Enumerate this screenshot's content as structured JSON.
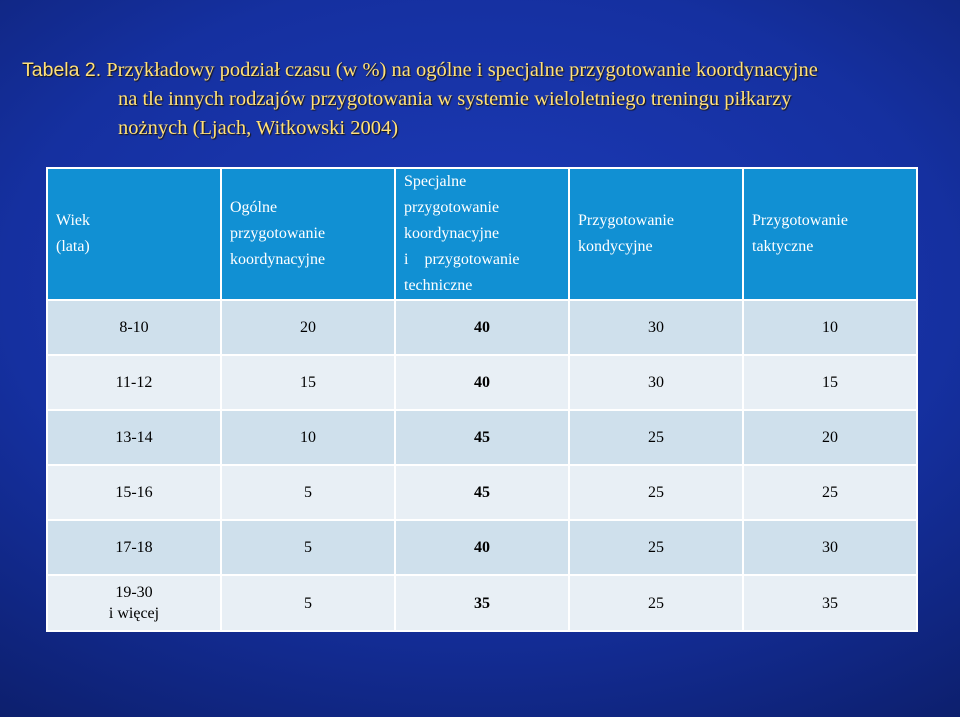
{
  "title": {
    "line1_label": "Tabela 2.",
    "line1_rest": " Przykładowy podział czasu (w %) na ogólne i specjalne przygotowanie koordynacyjne",
    "line2": "na tle innych rodzajów przygotowania w systemie wieloletniego treningu piłkarzy",
    "line3": "nożnych (Ljach, Witkowski 2004)"
  },
  "colors": {
    "title_text": "#ffe07a",
    "background": "#1530a0",
    "header_bg": "#1190d3",
    "row_odd": "#cfe0ec",
    "row_even": "#e8eff5"
  },
  "table": {
    "headers": {
      "age_line1": "Wiek",
      "age_line2": "(lata)",
      "general_line1": "Ogólne",
      "general_line2": "przygotowanie",
      "general_line3": "koordynacyjne",
      "special_line1": "Specjalne",
      "special_line2": "przygotowanie",
      "special_line3": "koordynacyjne",
      "special_line4": "i    przygotowanie",
      "special_line5": "techniczne",
      "condition_line1": "Przygotowanie",
      "condition_line2": "kondycyjne",
      "tactical_line1": "Przygotowanie",
      "tactical_line2": "taktyczne"
    },
    "rows": [
      {
        "age": "8-10",
        "general": "20",
        "special": "40",
        "condition": "30",
        "tactical": "10"
      },
      {
        "age": "11-12",
        "general": "15",
        "special": "40",
        "condition": "30",
        "tactical": "15"
      },
      {
        "age": "13-14",
        "general": "10",
        "special": "45",
        "condition": "25",
        "tactical": "20"
      },
      {
        "age": "15-16",
        "general": "5",
        "special": "45",
        "condition": "25",
        "tactical": "25"
      },
      {
        "age": "17-18",
        "general": "5",
        "special": "40",
        "condition": "25",
        "tactical": "30"
      },
      {
        "age_line1": "19-30",
        "age_line2": "i więcej",
        "general": "5",
        "special": "35",
        "condition": "25",
        "tactical": "35"
      }
    ]
  }
}
